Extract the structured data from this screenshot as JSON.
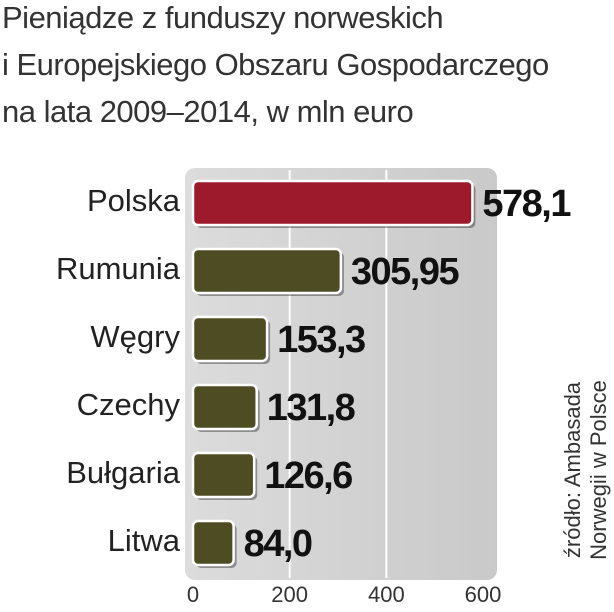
{
  "chart_data": {
    "type": "bar",
    "orientation": "horizontal",
    "title": [
      "Pieniądze z funduszy norweskich",
      "i Europejskiego Obszaru Gospodarczego",
      "na lata 2009–2014, w mln euro"
    ],
    "categories": [
      "Polska",
      "Rumunia",
      "Węgry",
      "Czechy",
      "Bułgaria",
      "Litwa"
    ],
    "values": [
      578.1,
      305.95,
      153.3,
      131.8,
      126.6,
      84.0
    ],
    "value_labels": [
      "578,1",
      "305,95",
      "153,3",
      "131,8",
      "126,6",
      "84,0"
    ],
    "colors": [
      "#9c1a2b",
      "#4e4c22",
      "#4e4c22",
      "#4e4c22",
      "#4e4c22",
      "#4e4c22"
    ],
    "xlim": [
      0,
      600
    ],
    "xticks": [
      0,
      200,
      400,
      600
    ],
    "grid": true,
    "source": [
      "źródło: Ambasada",
      "Norwegii w Polsce"
    ]
  }
}
